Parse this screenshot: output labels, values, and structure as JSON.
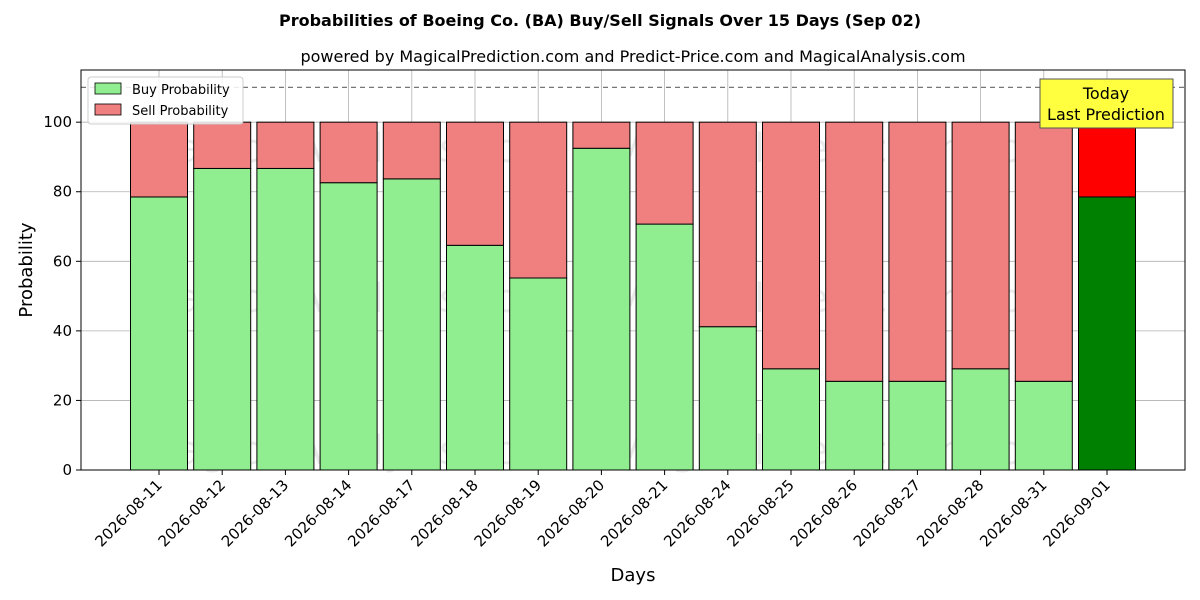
{
  "chart_data": {
    "type": "bar",
    "stacked": true,
    "title": "Probabilities of Boeing Co. (BA) Buy/Sell Signals Over 15 Days (Sep 02)",
    "subtitle": "powered by MagicalPrediction.com and Predict-Price.com and MagicalAnalysis.com",
    "xlabel": "Days",
    "ylabel": "Probability",
    "ylim": [
      0,
      115
    ],
    "yticks": [
      0,
      20,
      40,
      60,
      80,
      100
    ],
    "grid": true,
    "legend_position": "top-left",
    "reference_line": {
      "y": 110,
      "style": "dashed"
    },
    "categories": [
      "2026-08-11",
      "2026-08-12",
      "2026-08-13",
      "2026-08-14",
      "2026-08-17",
      "2026-08-18",
      "2026-08-19",
      "2026-08-20",
      "2026-08-21",
      "2026-08-24",
      "2026-08-25",
      "2026-08-26",
      "2026-08-27",
      "2026-08-28",
      "2026-08-31",
      "2026-09-01"
    ],
    "series": [
      {
        "name": "Buy Probability",
        "color": "#90ee90",
        "highlight_color": "#008000",
        "values": [
          78.5,
          86.7,
          86.7,
          82.6,
          83.7,
          64.6,
          55.2,
          92.5,
          70.7,
          41.2,
          29.1,
          25.5,
          25.5,
          29.1,
          25.5,
          78.5
        ]
      },
      {
        "name": "Sell Probability",
        "color": "#f08080",
        "highlight_color": "#ff0000",
        "values": [
          21.5,
          13.3,
          13.3,
          17.4,
          16.3,
          35.4,
          44.8,
          7.5,
          29.3,
          58.8,
          70.9,
          74.5,
          74.5,
          70.9,
          74.5,
          21.5
        ]
      }
    ],
    "highlight_index": 15,
    "annotation": {
      "lines": [
        "Today",
        "Last Prediction"
      ],
      "color": "#ffff40"
    },
    "watermarks": [
      "MagicalAnalysis.com",
      "MagicalPrediction.com"
    ]
  }
}
